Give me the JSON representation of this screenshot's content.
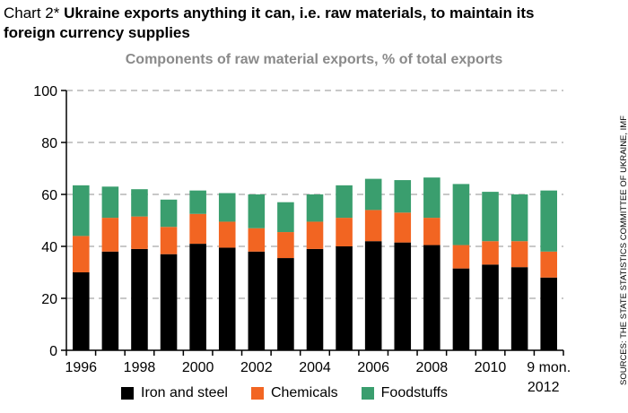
{
  "header": {
    "chart_number": "Chart 2*",
    "title": "Ukraine exports anything it can, i.e. raw materials, to maintain its foreign currency supplies"
  },
  "source_note": "SOURCES: THE STATE STATISTICS COMMITTEE OF UKRAINE, IMF",
  "chart_data": {
    "type": "bar",
    "stacked": true,
    "title": "Components of raw material exports, % of total exports",
    "categories": [
      "1996",
      "1997",
      "1998",
      "1999",
      "2000",
      "2001",
      "2002",
      "2003",
      "2004",
      "2005",
      "2006",
      "2007",
      "2008",
      "2009",
      "2010",
      "2011",
      "9 mon. 2012"
    ],
    "x_tick_labels": [
      "1996",
      "",
      "1998",
      "",
      "2000",
      "",
      "2002",
      "",
      "2004",
      "",
      "2006",
      "",
      "2008",
      "",
      "2010",
      "",
      "9 mon."
    ],
    "x_tick_sublabel": "2012",
    "series": [
      {
        "name": "Iron and steel",
        "color": "#000000",
        "values": [
          30,
          38,
          39,
          37,
          41,
          39.5,
          38,
          35.5,
          39,
          40,
          42,
          41.5,
          40.5,
          31.5,
          33,
          32,
          28
        ]
      },
      {
        "name": "Chemicals",
        "color": "#f26522",
        "values": [
          14,
          13,
          12.5,
          10.5,
          11.5,
          10,
          9,
          10,
          10.5,
          11,
          12,
          11.5,
          10.5,
          9,
          9,
          10,
          10
        ]
      },
      {
        "name": "Foodstuffs",
        "color": "#3a9e6e",
        "values": [
          19.5,
          12,
          10.5,
          10.5,
          9,
          11,
          13,
          11.5,
          10.5,
          12.5,
          12,
          12.5,
          15.5,
          23.5,
          19,
          18,
          23.5
        ]
      }
    ],
    "ylim": [
      0,
      100
    ],
    "yticks": [
      0,
      20,
      40,
      60,
      80,
      100
    ],
    "grid": true,
    "legend_position": "bottom"
  }
}
